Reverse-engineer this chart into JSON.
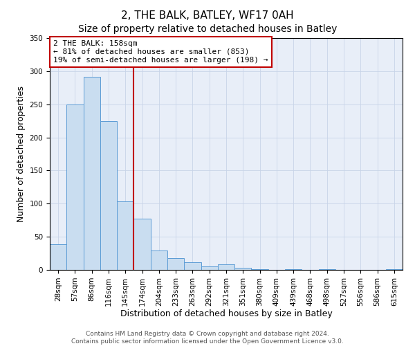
{
  "title": "2, THE BALK, BATLEY, WF17 0AH",
  "subtitle": "Size of property relative to detached houses in Batley",
  "xlabel": "Distribution of detached houses by size in Batley",
  "ylabel": "Number of detached properties",
  "categories": [
    "28sqm",
    "57sqm",
    "86sqm",
    "116sqm",
    "145sqm",
    "174sqm",
    "204sqm",
    "233sqm",
    "263sqm",
    "292sqm",
    "321sqm",
    "351sqm",
    "380sqm",
    "409sqm",
    "439sqm",
    "468sqm",
    "498sqm",
    "527sqm",
    "556sqm",
    "586sqm",
    "615sqm"
  ],
  "bar_heights": [
    39,
    250,
    291,
    225,
    103,
    77,
    29,
    18,
    11,
    5,
    8,
    3,
    1,
    0,
    1,
    0,
    1,
    0,
    0,
    0,
    1
  ],
  "bar_color": "#c9ddf0",
  "bar_edge_color": "#5b9bd5",
  "vline_x": 4.5,
  "vline_color": "#c00000",
  "ylim": [
    0,
    350
  ],
  "yticks": [
    0,
    50,
    100,
    150,
    200,
    250,
    300,
    350
  ],
  "annotation_title": "2 THE BALK: 158sqm",
  "annotation_line1": "← 81% of detached houses are smaller (853)",
  "annotation_line2": "19% of semi-detached houses are larger (198) →",
  "annotation_box_color": "#c00000",
  "footer_line1": "Contains HM Land Registry data © Crown copyright and database right 2024.",
  "footer_line2": "Contains public sector information licensed under the Open Government Licence v3.0.",
  "title_fontsize": 11,
  "axis_label_fontsize": 9,
  "tick_fontsize": 7.5,
  "footer_fontsize": 6.5
}
